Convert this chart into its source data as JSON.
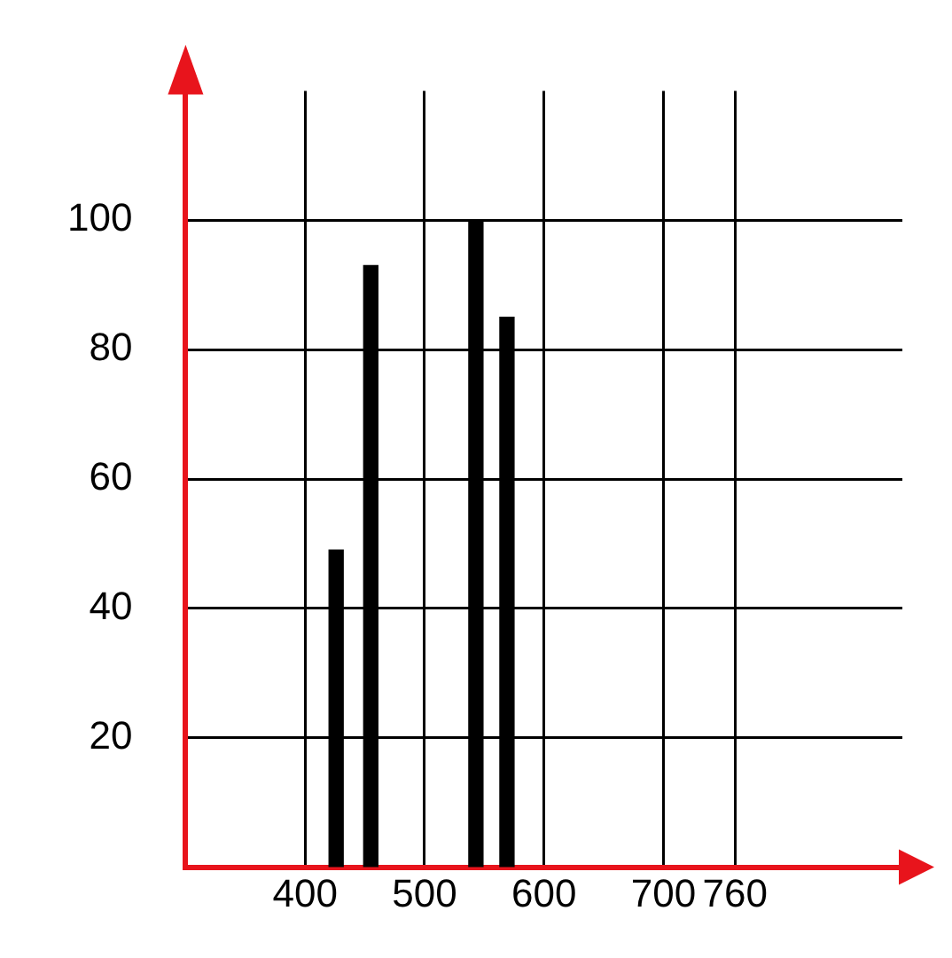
{
  "chart_data": {
    "type": "bar",
    "x": [
      426,
      455,
      543,
      569
    ],
    "values": [
      49,
      93,
      100,
      85
    ],
    "color": "#000000",
    "xlim": [
      300,
      900
    ],
    "xticks": [
      400,
      500,
      600,
      700,
      760
    ],
    "ylim": [
      0,
      120
    ],
    "yticks": [
      20,
      40,
      60,
      80,
      100
    ],
    "grid": true
  }
}
